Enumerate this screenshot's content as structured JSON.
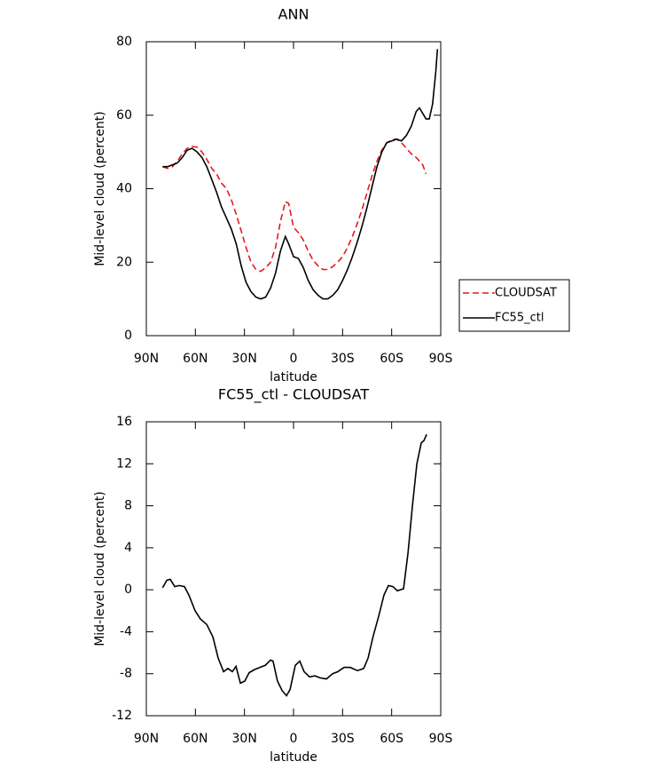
{
  "chart_data": [
    {
      "type": "line",
      "title": "ANN",
      "xlabel": "latitude",
      "ylabel": "Mid-level cloud (percent)",
      "x": [
        80,
        77,
        74,
        71,
        68,
        65,
        62,
        59,
        56,
        53,
        50,
        47,
        44,
        41,
        38,
        35,
        32,
        29,
        26,
        23,
        20,
        17,
        14,
        11,
        8,
        5,
        3,
        0,
        -3,
        -6,
        -9,
        -12,
        -15,
        -18,
        -21,
        -24,
        -27,
        -30,
        -33,
        -36,
        -39,
        -42,
        -45,
        -48,
        -51,
        -54,
        -57,
        -60,
        -63,
        -66,
        -69,
        -72,
        -75,
        -77,
        -79,
        -81,
        -83,
        -85,
        -87,
        -88
      ],
      "series": [
        {
          "name": "CLOUDSAT",
          "color": "#e41a1c",
          "style": "dashed",
          "values": [
            46,
            45.5,
            46,
            47.5,
            49.5,
            51,
            51.5,
            51.3,
            50,
            48,
            45.5,
            44,
            41.5,
            40,
            37,
            33,
            28.5,
            24,
            20,
            18,
            17.5,
            18.5,
            20,
            24,
            31,
            36.5,
            36,
            29.5,
            28,
            26,
            23,
            20.5,
            19,
            18,
            18,
            18.8,
            20,
            21.5,
            24,
            27,
            30.5,
            34.5,
            39,
            43.5,
            47.5,
            50.5,
            52.5,
            53.3,
            53.5,
            52.5,
            51,
            49.5,
            48.5,
            47.5,
            46.5,
            44,
            null,
            null,
            null,
            null
          ]
        },
        {
          "name": "FC55_ctl",
          "color": "#000000",
          "style": "solid",
          "values": [
            46,
            46,
            46.5,
            47,
            48.5,
            50.5,
            51,
            50,
            48.5,
            46,
            42.5,
            39,
            35,
            32,
            29,
            25,
            19,
            14.5,
            12,
            10.5,
            10,
            10.5,
            13,
            17,
            23,
            27,
            25,
            21.5,
            21,
            18.5,
            15,
            12.5,
            11,
            10,
            10,
            11,
            12.5,
            15,
            18,
            21.5,
            25.5,
            30,
            35,
            40.5,
            46,
            50,
            52.5,
            53,
            53.5,
            53,
            54.5,
            57,
            61,
            62,
            60.5,
            59,
            59,
            63,
            72,
            78
          ]
        }
      ],
      "xlim": [
        90,
        -90
      ],
      "xticks": [
        {
          "value": 90,
          "label": "90N"
        },
        {
          "value": 60,
          "label": "60N"
        },
        {
          "value": 30,
          "label": "30N"
        },
        0,
        {
          "value": -30,
          "label": "30S"
        },
        {
          "value": -60,
          "label": "60S"
        },
        {
          "value": -90,
          "label": "90S"
        }
      ],
      "ylim": [
        0,
        80
      ],
      "yticks": [
        0,
        20,
        40,
        60,
        80
      ],
      "legend": "right"
    },
    {
      "type": "line",
      "title": "FC55_ctl - CLOUDSAT",
      "xlabel": "latitude",
      "ylabel": "Mid-level cloud (percent)",
      "x": [
        80,
        77.5,
        75.4,
        72.6,
        69.9,
        66.7,
        64,
        60.2,
        56.9,
        53.1,
        49.3,
        46.1,
        42.8,
        40.1,
        37.4,
        35.2,
        32.5,
        29.8,
        27.1,
        23.8,
        20.6,
        17.3,
        14.1,
        12.5,
        9.8,
        7,
        4.3,
        2.1,
        -1.1,
        -3.8,
        -6.5,
        -9.8,
        -13,
        -16.3,
        -20.1,
        -23.9,
        -27.1,
        -30.9,
        -34.7,
        -39.1,
        -42.9,
        -45.6,
        -48.6,
        -52.1,
        -55.3,
        -58,
        -60.8,
        -63.5,
        -67.3,
        -70,
        -72.7,
        -75.4,
        -78.1,
        -79.7,
        -81.4
      ],
      "values": [
        0.2,
        0.9,
        1.0,
        0.3,
        0.4,
        0.3,
        -0.5,
        -2,
        -2.8,
        -3.3,
        -4.5,
        -6.5,
        -7.8,
        -7.5,
        -7.8,
        -7.3,
        -8.9,
        -8.7,
        -7.9,
        -7.6,
        -7.4,
        -7.2,
        -6.7,
        -6.8,
        -8.7,
        -9.6,
        -10.1,
        -9.5,
        -7.2,
        -6.8,
        -7.8,
        -8.3,
        -8.2,
        -8.4,
        -8.5,
        -8,
        -7.8,
        -7.4,
        -7.4,
        -7.7,
        -7.5,
        -6.5,
        -4.5,
        -2.5,
        -0.5,
        0.4,
        0.3,
        -0.1,
        0.1,
        3.5,
        8,
        12,
        14,
        14.2,
        14.8
      ],
      "color": "#000000",
      "xlim": [
        90,
        -90
      ],
      "xticks": [
        {
          "value": 90,
          "label": "90N"
        },
        {
          "value": 60,
          "label": "60N"
        },
        {
          "value": 30,
          "label": "30N"
        },
        0,
        {
          "value": -30,
          "label": "30S"
        },
        {
          "value": -60,
          "label": "60S"
        },
        {
          "value": -90,
          "label": "90S"
        }
      ],
      "ylim": [
        -12,
        16
      ],
      "yticks": [
        -12,
        -8,
        -4,
        0,
        4,
        8,
        12,
        16
      ]
    }
  ]
}
